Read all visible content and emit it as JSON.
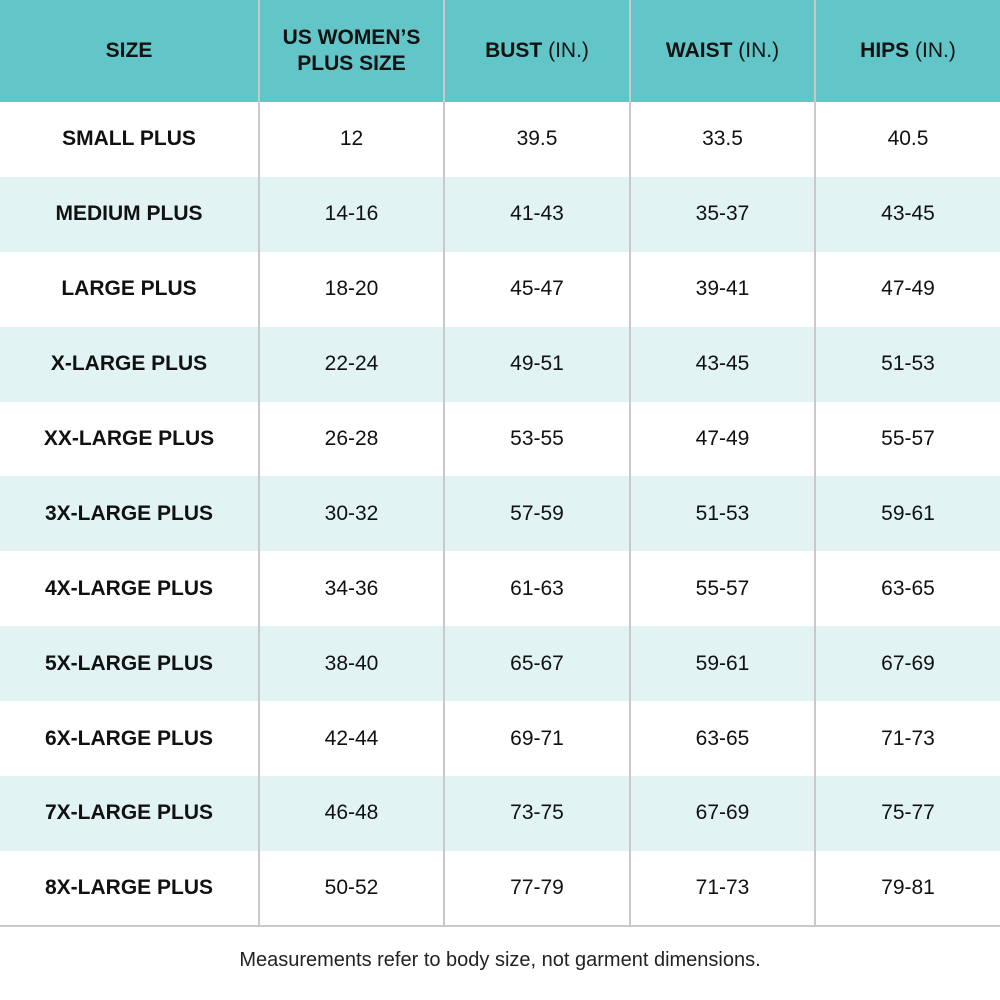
{
  "colors": {
    "header_bg": "#62c6c8",
    "alt_row_bg": "#e1f3f3",
    "border": "#c9c9c9"
  },
  "table": {
    "headers": [
      {
        "main": "SIZE",
        "unit": ""
      },
      {
        "main": "US WOMEN’S PLUS SIZE",
        "unit": ""
      },
      {
        "main": "BUST",
        "unit": "(IN.)"
      },
      {
        "main": "WAIST",
        "unit": "(IN.)"
      },
      {
        "main": "HIPS",
        "unit": "(IN.)"
      }
    ],
    "rows": [
      [
        "SMALL PLUS",
        "12",
        "39.5",
        "33.5",
        "40.5"
      ],
      [
        "MEDIUM PLUS",
        "14-16",
        "41-43",
        "35-37",
        "43-45"
      ],
      [
        "LARGE PLUS",
        "18-20",
        "45-47",
        "39-41",
        "47-49"
      ],
      [
        "X-LARGE PLUS",
        "22-24",
        "49-51",
        "43-45",
        "51-53"
      ],
      [
        "XX-LARGE PLUS",
        "26-28",
        "53-55",
        "47-49",
        "55-57"
      ],
      [
        "3X-LARGE PLUS",
        "30-32",
        "57-59",
        "51-53",
        "59-61"
      ],
      [
        "4X-LARGE PLUS",
        "34-36",
        "61-63",
        "55-57",
        "63-65"
      ],
      [
        "5X-LARGE PLUS",
        "38-40",
        "65-67",
        "59-61",
        "67-69"
      ],
      [
        "6X-LARGE PLUS",
        "42-44",
        "69-71",
        "63-65",
        "71-73"
      ],
      [
        "7X-LARGE PLUS",
        "46-48",
        "73-75",
        "67-69",
        "75-77"
      ],
      [
        "8X-LARGE PLUS",
        "50-52",
        "77-79",
        "71-73",
        "79-81"
      ]
    ]
  },
  "note": "Measurements refer to body size, not garment dimensions."
}
